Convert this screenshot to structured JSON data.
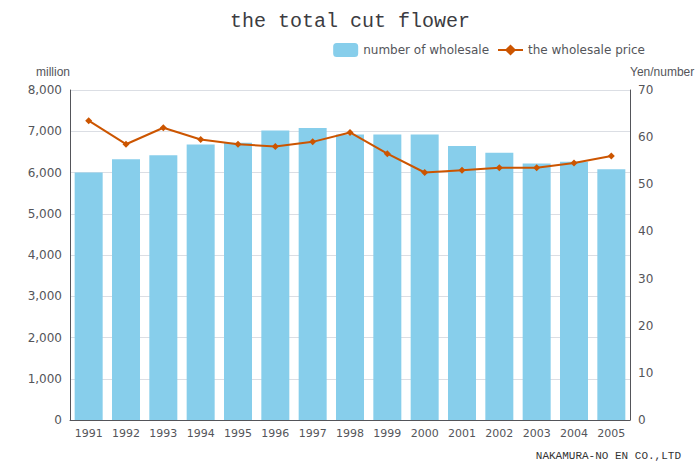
{
  "chart_data": {
    "type": "bar",
    "title": "the total cut flower",
    "categories": [
      "1991",
      "1992",
      "1993",
      "1994",
      "1995",
      "1996",
      "1997",
      "1998",
      "1999",
      "2000",
      "2001",
      "2002",
      "2003",
      "2004",
      "2005"
    ],
    "series": [
      {
        "name": "number of wholesale",
        "type": "bar",
        "color": "#87CEEB",
        "values": [
          6000,
          6320,
          6420,
          6680,
          6720,
          7020,
          7080,
          6920,
          6920,
          6920,
          6640,
          6480,
          6220,
          6260,
          6080
        ]
      },
      {
        "name": "the wholesale price",
        "type": "line",
        "axis": "y2",
        "color": "#CC5500",
        "marker": "diamond",
        "line_style": "solid",
        "values": [
          63.5,
          58.5,
          62.0,
          59.5,
          58.5,
          58.0,
          59.0,
          61.0,
          56.5,
          52.5,
          53.0,
          53.5,
          53.5,
          54.5,
          56.0
        ]
      }
    ],
    "ylabel": "million",
    "y2label": "Yen/number",
    "ylim": [
      0,
      8000
    ],
    "yticks": [
      0,
      {
        "value": 1000,
        "label": "1,000"
      },
      {
        "value": 2000,
        "label": "2,000"
      },
      {
        "value": 3000,
        "label": "3,000"
      },
      {
        "value": 4000,
        "label": "4,000"
      },
      {
        "value": 5000,
        "label": "5,000"
      },
      {
        "value": 6000,
        "label": "6,000"
      },
      {
        "value": 7000,
        "label": "7,000"
      },
      {
        "value": 8000,
        "label": "8,000"
      }
    ],
    "y2lim": [
      0,
      70
    ],
    "y2ticks": [
      0,
      10,
      20,
      30,
      40,
      50,
      60,
      70
    ],
    "grid": true,
    "legend": "upper right",
    "annotations": [
      "NAKAMURA-NO EN CO.,LTD"
    ]
  }
}
